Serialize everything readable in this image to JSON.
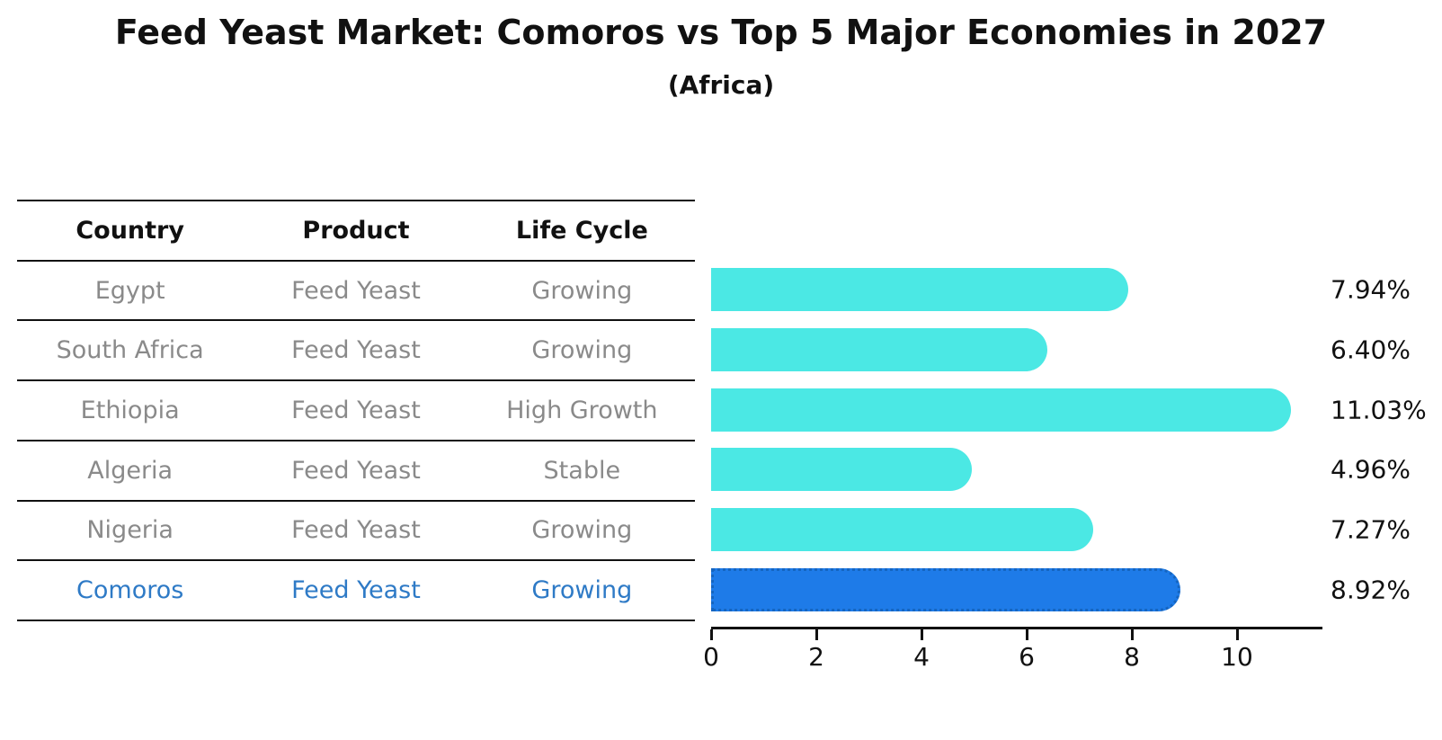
{
  "table": {
    "headers": [
      "Country",
      "Product",
      "Life Cycle"
    ],
    "rows": [
      {
        "country": "Egypt",
        "product": "Feed Yeast",
        "life_cycle": "Growing",
        "highlight": false
      },
      {
        "country": "South Africa",
        "product": "Feed Yeast",
        "life_cycle": "Growing",
        "highlight": false
      },
      {
        "country": "Ethiopia",
        "product": "Feed Yeast",
        "life_cycle": "High Growth",
        "highlight": false
      },
      {
        "country": "Algeria",
        "product": "Feed Yeast",
        "life_cycle": "Stable",
        "highlight": false
      },
      {
        "country": "Nigeria",
        "product": "Feed Yeast",
        "life_cycle": "Growing",
        "highlight": false
      },
      {
        "country": "Comoros",
        "product": "Feed Yeast",
        "life_cycle": "Growing",
        "highlight": true
      }
    ]
  },
  "chart_data": {
    "type": "bar",
    "orientation": "horizontal",
    "title": "Feed Yeast Market: Comoros vs Top 5 Major Economies in 2027",
    "subtitle": "(Africa)",
    "categories": [
      "Egypt",
      "South Africa",
      "Ethiopia",
      "Algeria",
      "Nigeria",
      "Comoros"
    ],
    "values": [
      7.94,
      6.4,
      11.03,
      4.96,
      7.27,
      8.92
    ],
    "value_labels": [
      "7.94%",
      "6.40%",
      "11.03%",
      "4.96%",
      "7.27%",
      "8.92%"
    ],
    "xlabel": "",
    "ylabel": "",
    "xlim": [
      0,
      11.6
    ],
    "x_ticks": [
      0,
      2,
      4,
      6,
      8,
      10
    ],
    "grid": false,
    "legend": false,
    "bar_color": "#4be8e4",
    "highlight_index": 5,
    "highlight_color": "#1e7be8",
    "highlight_border_color": "#1565c0",
    "highlight_text_color": "#2e7ac6",
    "axis_color": "#111111",
    "text_muted_color": "#8a8a8a"
  }
}
